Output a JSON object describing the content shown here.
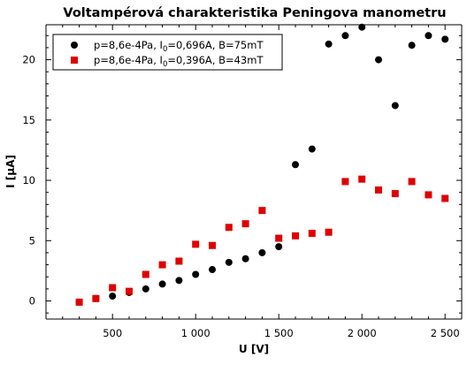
{
  "chart_data": {
    "type": "scatter",
    "title": "Voltampérová charakteristika Peningova manometru",
    "xlabel": "U [V]",
    "ylabel": "I [µA]",
    "xlim": [
      100,
      2600
    ],
    "ylim": [
      -1.5,
      22.9
    ],
    "x_ticks": [
      500,
      1000,
      1500,
      2000,
      2500
    ],
    "x_tick_labels": [
      "500",
      "1 000",
      "1 500",
      "2 000",
      "2 500"
    ],
    "y_ticks": [
      0,
      5,
      10,
      15,
      20
    ],
    "y_tick_labels": [
      "0",
      "5",
      "10",
      "15",
      "20"
    ],
    "grid": false,
    "legend_position": "top-left",
    "series": [
      {
        "name_parts": [
          "p=8,6e-4Pa, I",
          "0",
          "=0,696A, B=75mT"
        ],
        "marker": "circle",
        "color": "#000000",
        "points": [
          [
            300,
            -0.1
          ],
          [
            400,
            0.2
          ],
          [
            500,
            0.4
          ],
          [
            600,
            0.7
          ],
          [
            700,
            1.0
          ],
          [
            800,
            1.4
          ],
          [
            900,
            1.7
          ],
          [
            1000,
            2.2
          ],
          [
            1100,
            2.6
          ],
          [
            1200,
            3.2
          ],
          [
            1300,
            3.5
          ],
          [
            1400,
            4.0
          ],
          [
            1500,
            4.5
          ],
          [
            1600,
            11.3
          ],
          [
            1700,
            12.6
          ],
          [
            1800,
            21.3
          ],
          [
            1900,
            22.0
          ],
          [
            2000,
            22.7
          ],
          [
            2100,
            20.0
          ],
          [
            2200,
            16.2
          ],
          [
            2300,
            21.2
          ],
          [
            2400,
            22.0
          ],
          [
            2500,
            21.7
          ]
        ]
      },
      {
        "name_parts": [
          "p=8,6e-4Pa, I",
          "0",
          "=0,396A, B=43mT"
        ],
        "marker": "square",
        "color": "#e00000",
        "points": [
          [
            300,
            -0.1
          ],
          [
            400,
            0.2
          ],
          [
            500,
            1.1
          ],
          [
            600,
            0.8
          ],
          [
            700,
            2.2
          ],
          [
            800,
            3.0
          ],
          [
            900,
            3.3
          ],
          [
            1000,
            4.7
          ],
          [
            1100,
            4.6
          ],
          [
            1200,
            6.1
          ],
          [
            1300,
            6.4
          ],
          [
            1400,
            7.5
          ],
          [
            1500,
            5.2
          ],
          [
            1600,
            5.4
          ],
          [
            1700,
            5.6
          ],
          [
            1800,
            5.7
          ],
          [
            1900,
            9.9
          ],
          [
            2000,
            10.1
          ],
          [
            2100,
            9.2
          ],
          [
            2200,
            8.9
          ],
          [
            2300,
            9.9
          ],
          [
            2400,
            8.8
          ],
          [
            2500,
            8.5
          ]
        ]
      }
    ]
  }
}
